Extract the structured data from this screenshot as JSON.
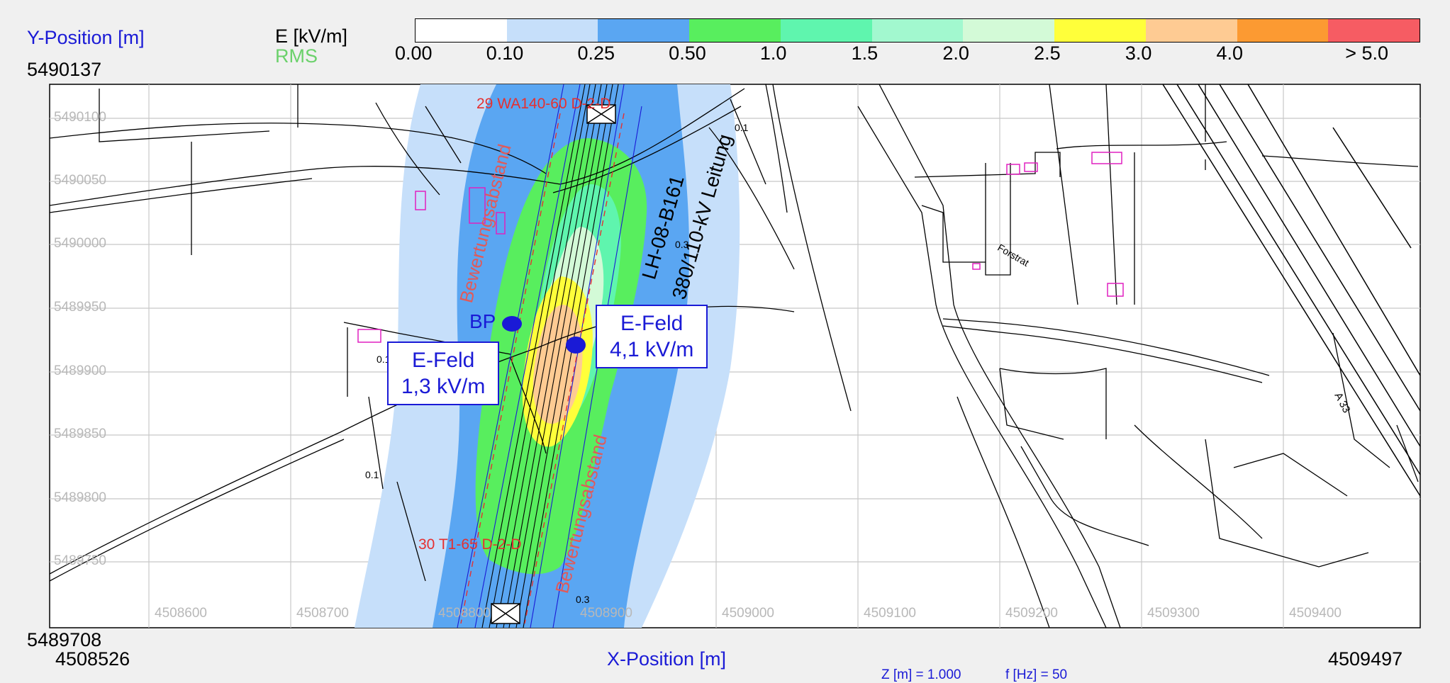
{
  "header": {
    "y_axis_label": "Y-Position [m]",
    "unit_label": "E [kV/m]",
    "rms_label": "RMS",
    "y_max": "5490137"
  },
  "legend": {
    "colors": [
      "#ffffff",
      "#c6dffa",
      "#5aa6f2",
      "#58ee5e",
      "#5ff5ae",
      "#a2f8cf",
      "#d3fad7",
      "#ffff3a",
      "#fecb93",
      "#fc9a32",
      "#f65c63"
    ],
    "ticks": [
      "0.00",
      "0.10",
      "0.25",
      "0.50",
      "1.0",
      "1.5",
      "2.0",
      "2.5",
      "3.0",
      "4.0",
      "> 5.0"
    ]
  },
  "axes": {
    "y_ticks": [
      "5490100",
      "5490050",
      "5490000",
      "5489950",
      "5489900",
      "5489850",
      "5489800",
      "5489750"
    ],
    "x_ticks": [
      "4508600",
      "4508700",
      "4508800",
      "4508900",
      "4509000",
      "4509100",
      "4509200",
      "4509300",
      "4509400"
    ],
    "y_min": "5489708",
    "x_min": "4508526",
    "x_max": "4509497",
    "x_axis_label": "X-Position [m]",
    "z_info": "Z [m] = 1.000",
    "f_info": "f [Hz] = 50"
  },
  "map_labels": {
    "tower_top": "29 WA140-60 D-2-D",
    "tower_bottom": "30 T1-65 D-2-D",
    "line_name_1": "380/110-kV Leitung",
    "line_name_2": "LH-08-B161",
    "bew_1": "Bewertungsabstand",
    "bew_2": "Bewertungsabstand",
    "bp": "BP",
    "street": "Forstrat",
    "motorway": "A 33",
    "contour_labels": [
      "0.1",
      "0.3",
      "0.1",
      "0.1",
      "0.3"
    ]
  },
  "callouts": {
    "left": {
      "title": "E-Feld",
      "value": "1,3 kV/m"
    },
    "right": {
      "title": "E-Feld",
      "value": "4,1 kV/m"
    }
  }
}
